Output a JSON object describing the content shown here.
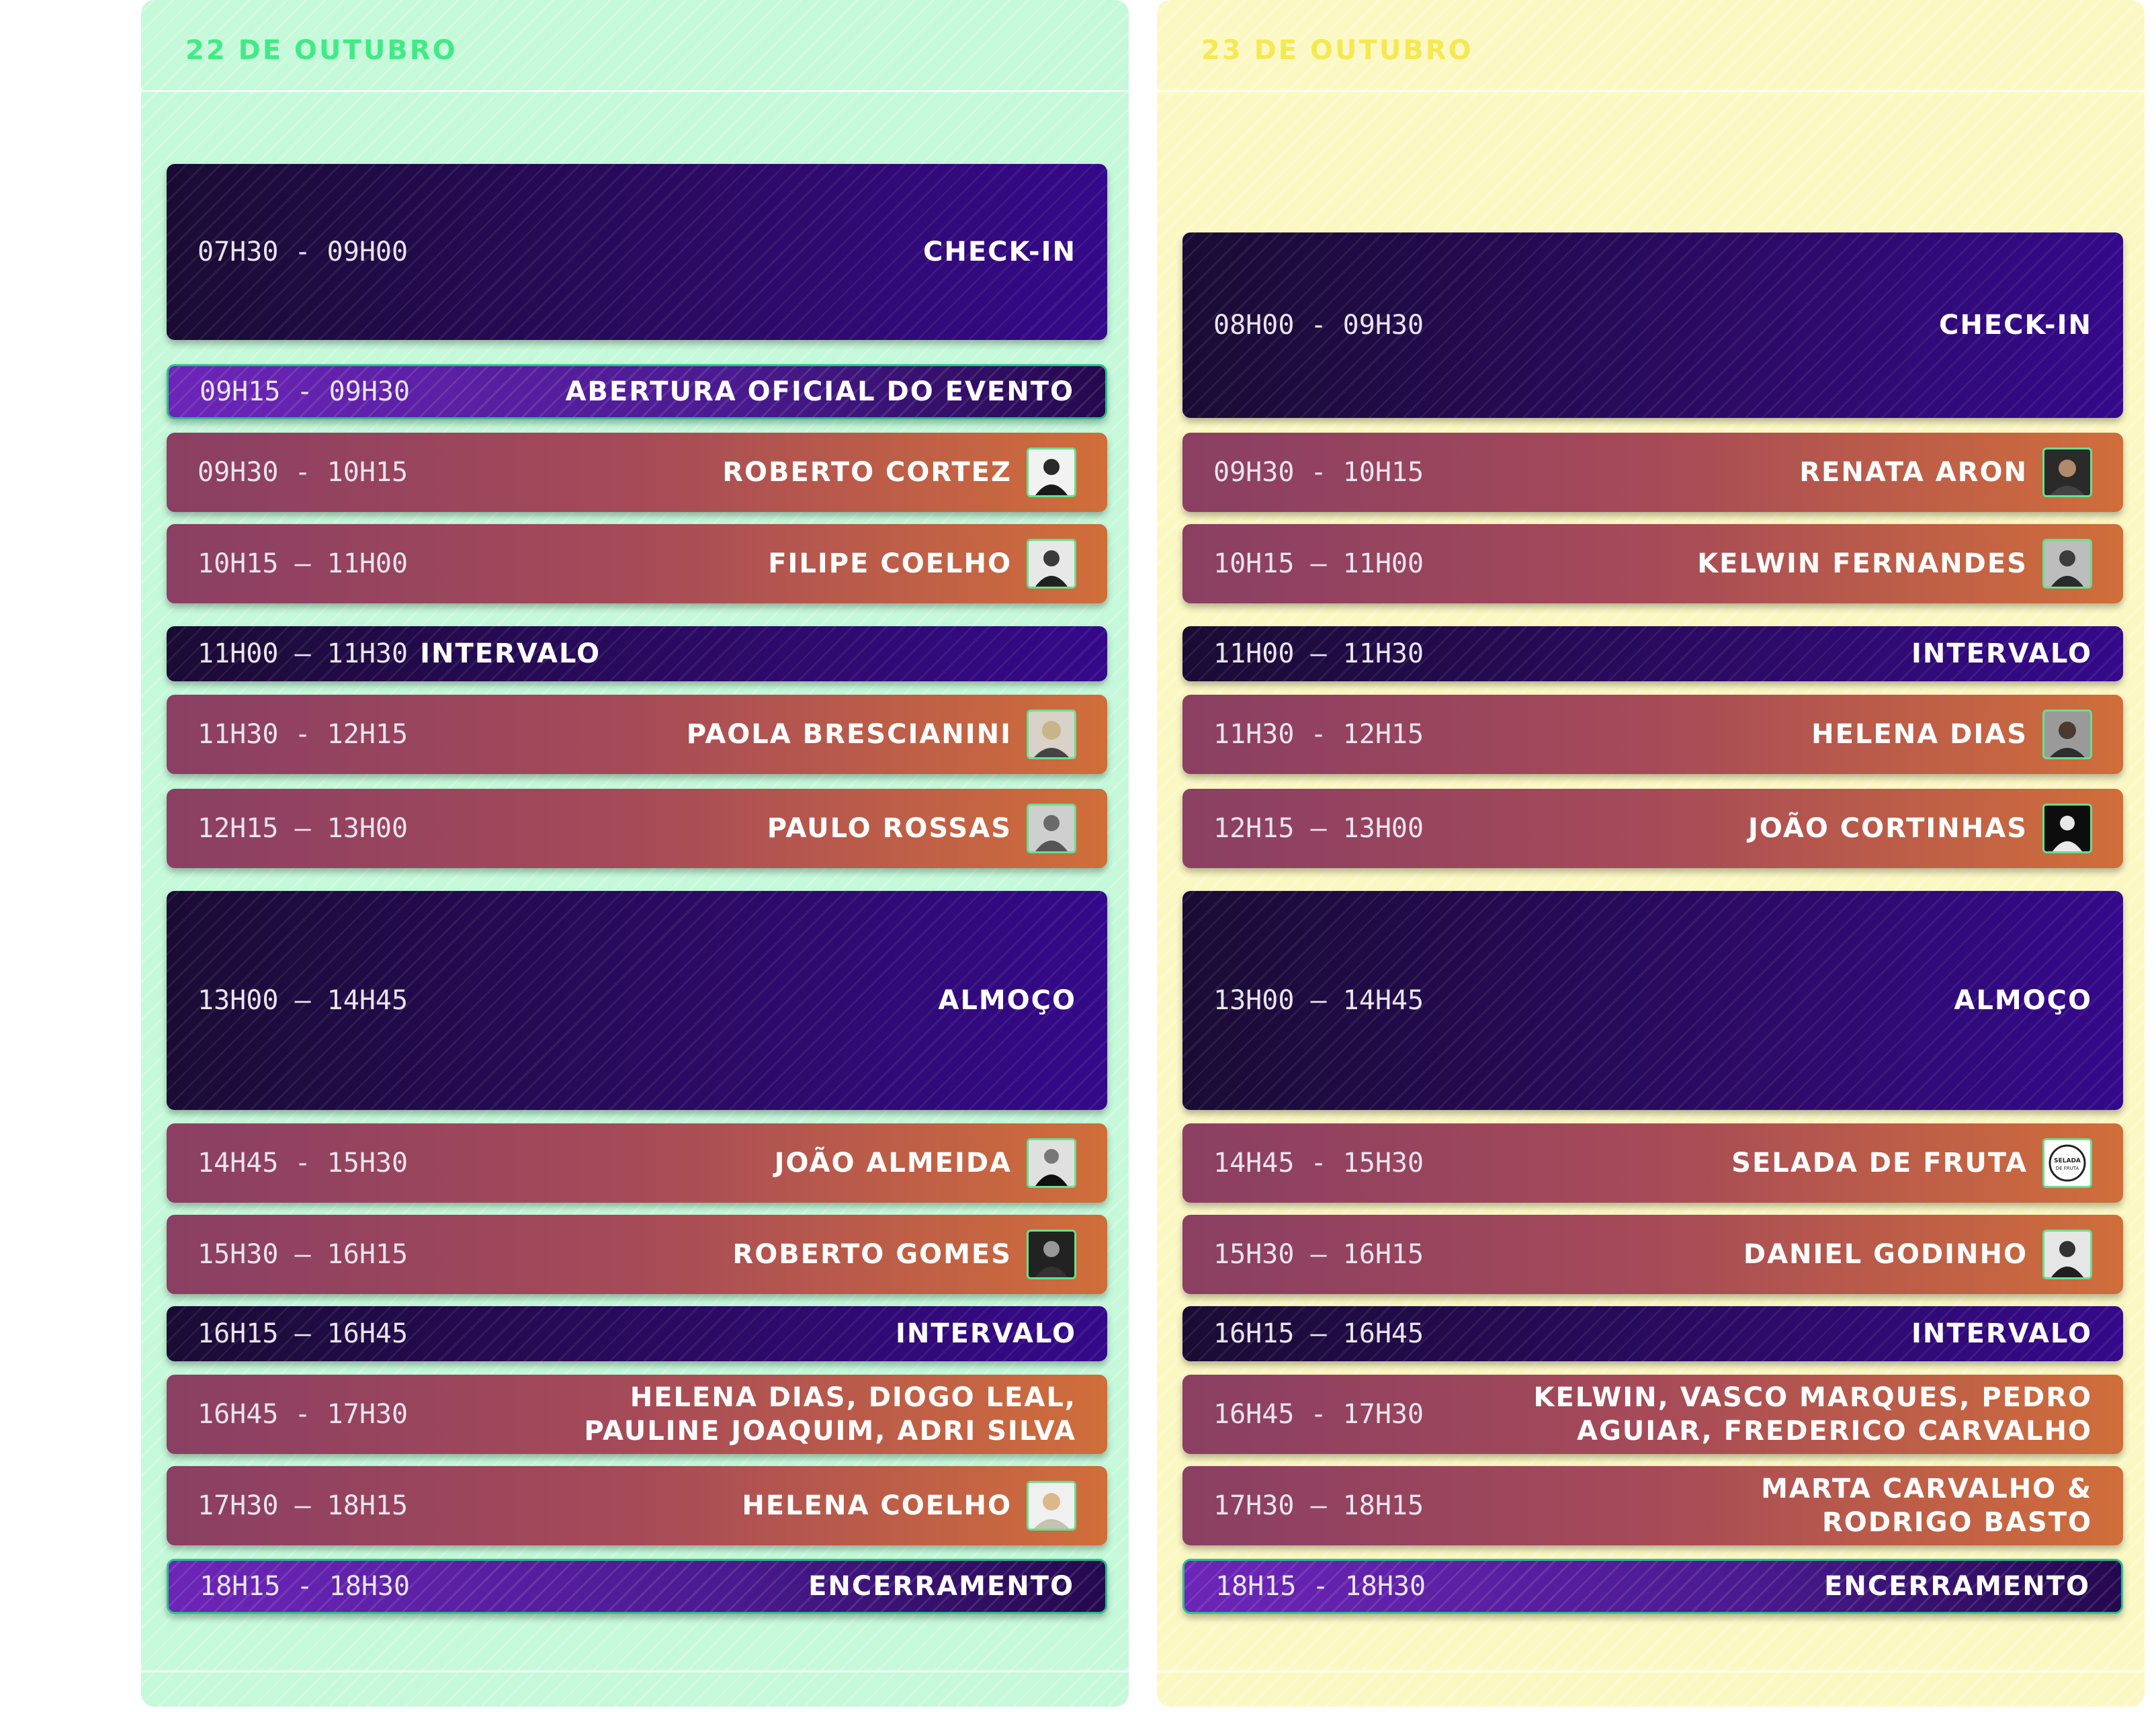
{
  "days": [
    {
      "title": "22 DE OUTUBRO",
      "sessions": [
        {
          "time": "07H30 - 09H00",
          "label": "CHECK-IN"
        },
        {
          "time": "09H15 - 09H30",
          "label": "ABERTURA OFICIAL DO EVENTO"
        },
        {
          "time": "09H30 - 10H15",
          "label": "ROBERTO CORTEZ"
        },
        {
          "time": "10H15 – 11H00",
          "label": "FILIPE COELHO"
        },
        {
          "time": "11H00 – 11H30",
          "label": "INTERVALO"
        },
        {
          "time": "11H30 - 12H15",
          "label": "PAOLA BRESCIANINI"
        },
        {
          "time": "12H15 – 13H00",
          "label": "PAULO ROSSAS"
        },
        {
          "time": "13H00 – 14H45",
          "label": "ALMOÇO"
        },
        {
          "time": "14H45 - 15H30",
          "label": "JOÃO ALMEIDA"
        },
        {
          "time": "15H30 – 16H15",
          "label": "ROBERTO GOMES"
        },
        {
          "time": "16H15 – 16H45",
          "label": "INTERVALO"
        },
        {
          "time": "16H45 - 17H30",
          "label": "HELENA DIAS, DIOGO LEAL, PAULINE JOAQUIM, ADRI SILVA"
        },
        {
          "time": "17H30 – 18H15",
          "label": "HELENA COELHO"
        },
        {
          "time": "18H15 - 18H30",
          "label": "ENCERRAMENTO"
        }
      ]
    },
    {
      "title": "23 DE OUTUBRO",
      "sessions": [
        {
          "time": "08H00 - 09H30",
          "label": "CHECK-IN"
        },
        {
          "time": "09H30 - 10H15",
          "label": "RENATA ARON"
        },
        {
          "time": "10H15 – 11H00",
          "label": "KELWIN FERNANDES"
        },
        {
          "time": "11H00 – 11H30",
          "label": "INTERVALO"
        },
        {
          "time": "11H30 - 12H15",
          "label": "HELENA DIAS"
        },
        {
          "time": "12H15 – 13H00",
          "label": "JOÃO CORTINHAS"
        },
        {
          "time": "13H00 – 14H45",
          "label": "ALMOÇO"
        },
        {
          "time": "14H45 - 15H30",
          "label": "SELADA DE FRUTA"
        },
        {
          "time": "15H30 – 16H15",
          "label": "DANIEL GODINHO"
        },
        {
          "time": "16H15 – 16H45",
          "label": "INTERVALO"
        },
        {
          "time": "16H45 - 17H30",
          "label": "KELWIN, VASCO MARQUES, PEDRO AGUIAR, FREDERICO CARVALHO"
        },
        {
          "time": "17H30 – 18H15",
          "label": "MARTA CARVALHO & RODRIGO BASTO"
        },
        {
          "time": "18H15 - 18H30",
          "label": "ENCERRAMENTO"
        }
      ]
    }
  ],
  "logo_text": [
    "SELADA",
    "DE FRUTA"
  ]
}
